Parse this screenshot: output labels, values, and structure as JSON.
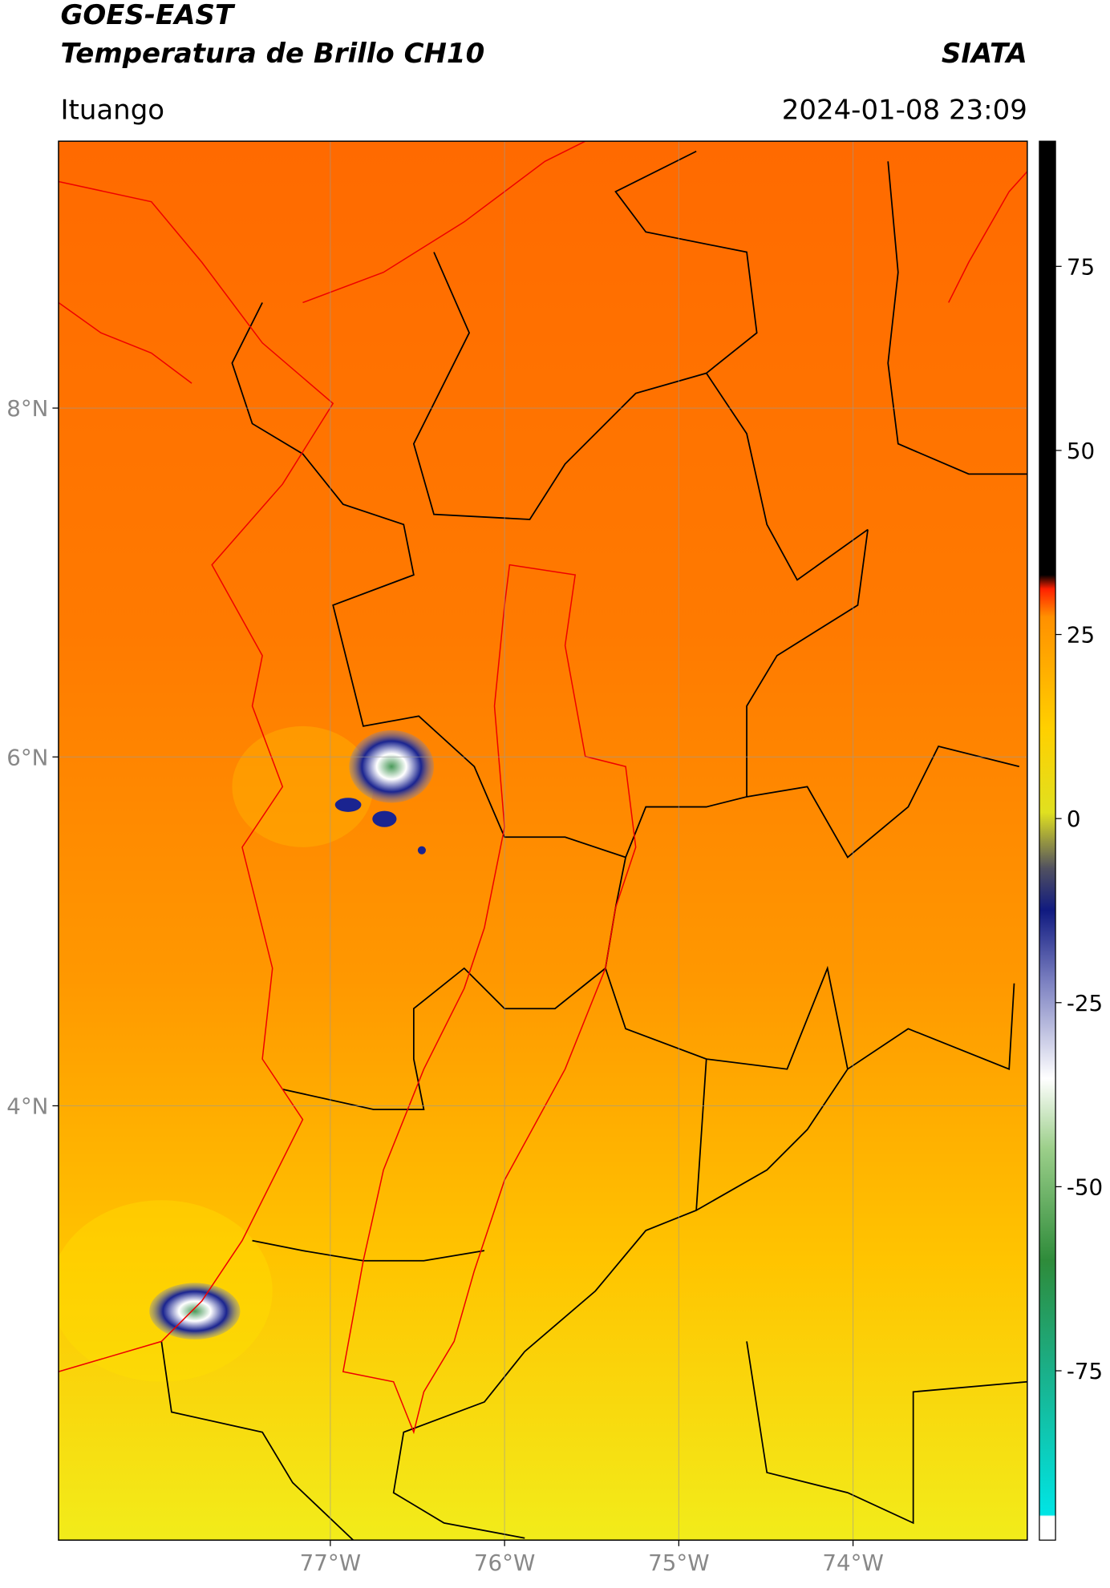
{
  "header": {
    "title": "GOES-EAST",
    "subtitle": "Temperatura de Brillo CH10",
    "source": "SIATA",
    "location": "Ituango",
    "datetime": "2024-01-08 23:09"
  },
  "map": {
    "xlim": [
      -78.56,
      -73.0
    ],
    "ylim": [
      1.51,
      9.53
    ],
    "xticks": [
      {
        "value": -77,
        "label": "77°W"
      },
      {
        "value": -76,
        "label": "76°W"
      },
      {
        "value": -75,
        "label": "75°W"
      },
      {
        "value": -74,
        "label": "74°W"
      }
    ],
    "yticks": [
      {
        "value": 8,
        "label": "8°N"
      },
      {
        "value": 6,
        "label": "6°N"
      },
      {
        "value": 4,
        "label": "4°N"
      }
    ]
  },
  "colorbar": {
    "lim": [
      -98,
      92
    ],
    "ticks": [
      75,
      50,
      25,
      0,
      -25,
      -50,
      -75
    ]
  }
}
